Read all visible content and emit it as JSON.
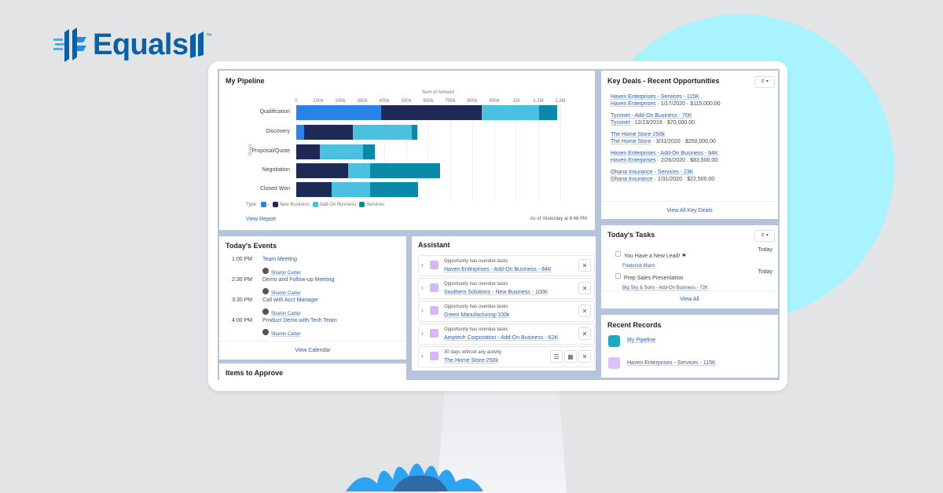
{
  "brand": {
    "name": "Equals",
    "tm": "™"
  },
  "pipeline": {
    "title": "My Pipeline",
    "axis_title": "Sum of Amount",
    "ylabel": "Stage",
    "legend_title": "Type",
    "view_report": "View Report",
    "as_of": "As of Yesterday at 8:48 PM"
  },
  "chart_data": {
    "type": "bar",
    "orientation": "horizontal",
    "stacked": true,
    "title": "My Pipeline",
    "xlabel": "Sum of Amount",
    "ylabel": "Stage",
    "xlim": [
      0,
      1200000
    ],
    "ticks": [
      "0",
      "100k",
      "200k",
      "300k",
      "400k",
      "500k",
      "600k",
      "700k",
      "800k",
      "900k",
      "1M",
      "1.1M",
      "1.2M"
    ],
    "categories": [
      "Qualification",
      "Discovery",
      "Proposal/Quote",
      "Negotiation",
      "Closed Won"
    ],
    "series": [
      {
        "name": "-",
        "color": "#2a84e8",
        "values": [
          386000,
          36000,
          0,
          0,
          0
        ]
      },
      {
        "name": "New Business",
        "color": "#1e2a55",
        "values": [
          457000,
          220000,
          107000,
          236000,
          160000
        ]
      },
      {
        "name": "Add-On Business",
        "color": "#4bc0e0",
        "values": [
          260000,
          270000,
          196000,
          100000,
          175000
        ]
      },
      {
        "name": "Services",
        "color": "#0b89a8",
        "values": [
          82000,
          24000,
          54000,
          316000,
          220000
        ]
      }
    ],
    "legend": "bottom-left"
  },
  "key_deals": {
    "title": "Key Deals - Recent Opportunities",
    "footer": "View All Key Deals",
    "items": [
      {
        "name": "Haven Enterprises - Services - 115K",
        "account": "Haven Enterprises",
        "meta": " · 1/17/2020 · $115,000.00"
      },
      {
        "name": "Tyconet - Add-On Business - 70K",
        "account": "Tyconet",
        "meta": " · 12/23/2019 · $70,000.00"
      },
      {
        "name": "The Home Store-250k",
        "account": "The Home Store",
        "meta": " · 3/31/2020 · $250,000.00"
      },
      {
        "name": "Haven Enterprises - Add-On Business - 84K",
        "account": "Haven Enterprises",
        "meta": " · 2/26/2020 · $83,500.00"
      },
      {
        "name": "Ohana Insurance - Services - 23K",
        "account": "Ohana Insurance",
        "meta": " · 1/31/2020 · $22,500.00"
      }
    ]
  },
  "events": {
    "title": "Today's Events",
    "footer": "View Calendar",
    "items": [
      {
        "time": "1:00 PM",
        "name": "Team Meeting",
        "person": "Sharon Carter"
      },
      {
        "time": "2:30 PM",
        "name": "Demo and Follow-up Meeting",
        "person": "Sharon Carter"
      },
      {
        "time": "3:30 PM",
        "name": "Call with Acct Manager",
        "person": "Sharon Carter"
      },
      {
        "time": "4:00 PM",
        "name": "Product Demo with Tech Team",
        "person": "Sharon Carter"
      }
    ]
  },
  "approve": {
    "title": "Items to Approve"
  },
  "assistant": {
    "title": "Assistant",
    "items": [
      {
        "label": "Opportunity has overdue tasks",
        "link": "Haven Enterprises - Add-On Business - 84K"
      },
      {
        "label": "Opportunity has overdue tasks",
        "link": "Southern Solutions - New Business - 100K"
      },
      {
        "label": "Opportunity has overdue tasks",
        "link": "Green Manufacturing-100k"
      },
      {
        "label": "Opportunity has overdue tasks",
        "link": "Amptech Corporation - Add-On Business - 62K"
      },
      {
        "label": "30 days without any activity",
        "link": "The Home Store-250k"
      }
    ]
  },
  "tasks": {
    "title": "Today's Tasks",
    "footer": "View All",
    "items": [
      {
        "name": "You Have a New Lead! ⚑",
        "sub": "Frederick Mann",
        "due": "Today"
      },
      {
        "name": "Prep Sales Presentation",
        "sub": "Big Sky & Sons - Add-On Business - 72K",
        "due": "Today"
      }
    ]
  },
  "recent": {
    "title": "Recent Records",
    "items": [
      {
        "name": "My Pipeline"
      },
      {
        "name": "Haven Enterprises - Services - 115K"
      }
    ]
  }
}
